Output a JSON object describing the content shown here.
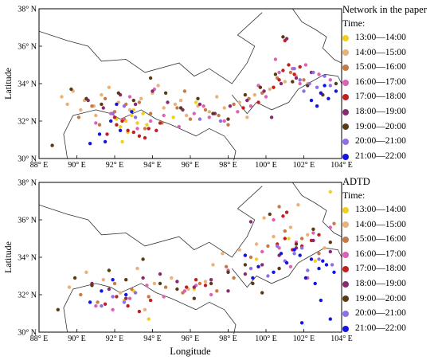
{
  "chart_data": [
    {
      "type": "scatter",
      "legend_title": "Network in the paper",
      "legend_subtitle": "Time:",
      "ylabel": "Latitude",
      "xlabel": "",
      "xlim": [
        88,
        104
      ],
      "ylim": [
        30,
        38
      ],
      "x_ticks": [
        "88° E",
        "90° E",
        "92° E",
        "94° E",
        "96° E",
        "98° E",
        "100° E",
        "102° E",
        "104° E"
      ],
      "y_ticks": [
        "30° N",
        "32° N",
        "34° N",
        "36° N",
        "38° N"
      ],
      "legend_placement": "right",
      "series": [
        {
          "name": "13:00—14:00",
          "color": "#f2cf1b",
          "x": [
            92.6,
            92.9,
            93.2,
            92.3,
            93.5,
            93.0,
            92.7,
            95.1,
            96.3,
            92.1,
            93.7,
            92.4
          ],
          "y": [
            32.0,
            32.3,
            31.9,
            31.7,
            32.4,
            32.6,
            31.4,
            32.2,
            33.0,
            32.1,
            31.8,
            30.9
          ]
        },
        {
          "name": "14:00—15:00",
          "color": "#e8b27a",
          "x": [
            89.2,
            89.8,
            90.4,
            90.9,
            91.3,
            91.7,
            92.2,
            92.8,
            93.4,
            94.0,
            94.6,
            95.2,
            95.8,
            96.4,
            97.0,
            97.8,
            98.6,
            99.4,
            100.2,
            101.0,
            101.6,
            102.2,
            91.0,
            93.1,
            94.3,
            90.2,
            97.4,
            99.0,
            89.5,
            95.5
          ],
          "y": [
            33.3,
            33.6,
            33.1,
            32.8,
            33.4,
            33.8,
            33.0,
            32.6,
            33.2,
            33.5,
            32.7,
            32.9,
            32.3,
            32.8,
            32.5,
            32.7,
            33.0,
            33.4,
            33.7,
            34.1,
            34.4,
            34.0,
            32.3,
            32.9,
            33.9,
            32.6,
            33.3,
            32.2,
            32.9,
            33.1
          ]
        },
        {
          "name": "15:00—16:00",
          "color": "#c77a45",
          "x": [
            90.1,
            90.8,
            91.5,
            92.0,
            92.6,
            93.3,
            93.9,
            94.5,
            95.3,
            96.0,
            96.8,
            97.5,
            98.3,
            99.1,
            99.8,
            100.6,
            101.3,
            102.0,
            91.2,
            93.6,
            95.7,
            98.0
          ],
          "y": [
            32.2,
            32.8,
            33.2,
            32.5,
            32.9,
            33.0,
            32.4,
            31.9,
            32.7,
            32.1,
            32.6,
            32.3,
            32.9,
            33.2,
            33.5,
            34.3,
            34.6,
            34.2,
            31.8,
            31.6,
            33.6,
            31.8
          ]
        },
        {
          "name": "16:00—17:00",
          "color": "#dd62b6",
          "x": [
            91.0,
            91.8,
            92.5,
            93.2,
            93.9,
            94.6,
            95.4,
            96.2,
            97.0,
            97.8,
            98.5,
            99.2,
            100.0,
            100.7,
            101.4,
            102.1,
            102.8,
            103.4,
            100.5,
            101.8,
            99.6,
            96.7,
            92.8,
            94.1
          ],
          "y": [
            31.9,
            32.4,
            32.1,
            31.6,
            32.0,
            32.3,
            31.7,
            32.4,
            32.2,
            32.0,
            32.5,
            32.8,
            33.3,
            34.6,
            34.8,
            35.0,
            34.5,
            34.2,
            35.3,
            34.0,
            33.9,
            32.8,
            33.3,
            33.7
          ]
        },
        {
          "name": "17:00—18:00",
          "color": "#c21f1f",
          "x": [
            91.6,
            92.1,
            92.7,
            93.3,
            93.8,
            94.4,
            92.4,
            93.0,
            93.6,
            98.8,
            99.6,
            100.4,
            100.9,
            101.2,
            101.5,
            101.0,
            100.7,
            101.8,
            92.0,
            94.2
          ],
          "y": [
            31.3,
            31.8,
            31.5,
            31.2,
            31.6,
            31.9,
            32.0,
            31.4,
            31.1,
            32.7,
            33.0,
            33.8,
            34.7,
            35.0,
            34.5,
            36.3,
            34.2,
            34.9,
            32.2,
            31.5
          ]
        },
        {
          "name": "18:00—19:00",
          "color": "#8a2a6e",
          "x": [
            90.6,
            91.4,
            92.3,
            93.1,
            94.0,
            94.8,
            95.6,
            96.5,
            97.3,
            98.1,
            99.0,
            99.9,
            100.8,
            101.6,
            102.4,
            101.1,
            100.3
          ],
          "y": [
            33.1,
            32.7,
            33.4,
            32.9,
            33.6,
            33.0,
            32.6,
            32.9,
            32.4,
            32.8,
            33.1,
            33.6,
            34.0,
            34.3,
            34.6,
            36.4,
            32.2
          ]
        },
        {
          "name": "19:00—20:00",
          "color": "#5a3a16",
          "x": [
            89.7,
            90.5,
            91.3,
            92.2,
            93.0,
            93.9,
            94.7,
            95.5,
            96.4,
            97.2,
            98.0,
            98.9,
            99.7,
            100.5,
            101.4,
            102.2,
            103.0,
            103.7,
            100.9,
            88.7
          ],
          "y": [
            33.7,
            33.2,
            32.9,
            33.5,
            33.1,
            34.3,
            33.5,
            32.7,
            33.2,
            32.4,
            32.1,
            33.4,
            33.8,
            34.5,
            34.1,
            33.9,
            33.4,
            34.0,
            36.5,
            30.7
          ]
        },
        {
          "name": "20:00—21:00",
          "color": "#8f6fe8",
          "x": [
            91.9,
            92.5,
            93.1,
            101.8,
            102.3,
            102.7,
            103.1,
            102.0,
            102.5,
            103.4,
            101.5,
            102.9,
            96.5,
            97.6
          ],
          "y": [
            32.4,
            32.8,
            32.2,
            34.2,
            34.0,
            33.8,
            34.4,
            33.6,
            34.6,
            33.9,
            34.8,
            33.5,
            32.1,
            32.0
          ]
        },
        {
          "name": "21:00—22:00",
          "color": "#1515e0",
          "x": [
            90.7,
            91.2,
            91.8,
            92.3,
            92.9,
            92.1,
            91.5,
            102.4,
            102.9,
            103.3,
            103.7,
            102.7,
            103.1
          ],
          "y": [
            30.8,
            31.3,
            32.0,
            31.5,
            32.5,
            32.9,
            30.9,
            33.1,
            33.5,
            33.2,
            33.6,
            32.8,
            33.9
          ]
        }
      ]
    },
    {
      "type": "scatter",
      "legend_title": "ADTD",
      "legend_subtitle": "Time:",
      "ylabel": "Latitude",
      "xlabel": "Longitude",
      "xlim": [
        88,
        104
      ],
      "ylim": [
        30,
        38
      ],
      "x_ticks": [
        "88° E",
        "90° E",
        "92° E",
        "94° E",
        "96° E",
        "98° E",
        "100° E",
        "102° E",
        "104° E"
      ],
      "y_ticks": [
        "30° N",
        "32° N",
        "34° N",
        "36° N",
        "38° N"
      ],
      "legend_placement": "right",
      "series": [
        {
          "name": "13:00—14:00",
          "color": "#f2cf1b",
          "x": [
            92.5,
            93.0,
            93.8,
            96.2,
            99.5,
            101.2,
            102.6,
            103.4
          ],
          "y": [
            31.7,
            32.2,
            30.7,
            32.3,
            33.9,
            35.0,
            33.8,
            37.5
          ]
        },
        {
          "name": "14:00—15:00",
          "color": "#e8b27a",
          "x": [
            89.6,
            90.5,
            91.4,
            92.3,
            93.2,
            94.1,
            95.0,
            95.9,
            96.8,
            97.7,
            98.6,
            99.5,
            100.4,
            101.3,
            102.2,
            103.1,
            93.6,
            97.2,
            99.9,
            101.7
          ],
          "y": [
            32.4,
            33.2,
            32.8,
            32.1,
            33.4,
            32.6,
            32.9,
            32.3,
            32.7,
            34.2,
            34.4,
            34.7,
            35.1,
            35.6,
            35.2,
            34.5,
            31.2,
            33.6,
            36.1,
            36.8
          ]
        },
        {
          "name": "15:00—16:00",
          "color": "#c77a45",
          "x": [
            90.2,
            91.1,
            92.0,
            92.9,
            93.8,
            94.7,
            95.6,
            96.5,
            97.4,
            98.3,
            99.2,
            100.1,
            101.0,
            101.9,
            102.8,
            103.6,
            97.9,
            100.7
          ],
          "y": [
            32.0,
            31.6,
            32.6,
            32.3,
            31.9,
            32.4,
            32.1,
            32.6,
            32.2,
            32.9,
            34.0,
            34.6,
            35.4,
            35.0,
            34.2,
            35.8,
            33.5,
            36.7
          ]
        },
        {
          "name": "16:00—17:00",
          "color": "#dd62b6",
          "x": [
            91.0,
            91.9,
            92.8,
            93.7,
            94.6,
            95.7,
            96.3,
            97.1,
            98.0,
            98.9,
            99.8,
            100.7,
            101.6,
            102.5,
            103.4,
            100.4,
            101.3,
            102.2
          ],
          "y": [
            31.4,
            31.2,
            31.8,
            32.5,
            31.9,
            32.2,
            32.5,
            32.0,
            33.3,
            34.1,
            34.3,
            34.5,
            34.8,
            35.3,
            35.6,
            36.0,
            33.5,
            32.9
          ]
        },
        {
          "name": "17:00—18:00",
          "color": "#c21f1f",
          "x": [
            91.5,
            92.1,
            92.7,
            93.3,
            93.9,
            95.8,
            96.3,
            96.8,
            100.6,
            101.0,
            101.4,
            101.1,
            100.9,
            101.9,
            102.4,
            102.8
          ],
          "y": [
            31.5,
            31.9,
            31.4,
            31.1,
            31.7,
            32.4,
            32.8,
            32.5,
            34.7,
            35.0,
            34.4,
            36.4,
            36.2,
            34.6,
            34.9,
            35.2
          ]
        },
        {
          "name": "18:00—19:00",
          "color": "#8a2a6e",
          "x": [
            90.8,
            91.7,
            92.6,
            93.5,
            94.4,
            95.3,
            96.2,
            97.1,
            98.0,
            98.9,
            99.8,
            100.7,
            101.6,
            102.5,
            103.4,
            99.2
          ],
          "y": [
            32.6,
            32.3,
            31.8,
            32.9,
            33.1,
            32.7,
            32.4,
            32.8,
            32.2,
            33.1,
            33.6,
            34.1,
            34.5,
            34.9,
            34.3,
            35.9
          ]
        },
        {
          "name": "19:00—20:00",
          "color": "#5a3a16",
          "x": [
            89.0,
            89.9,
            90.8,
            91.7,
            92.6,
            93.5,
            94.4,
            95.3,
            96.2,
            97.1,
            98.0,
            98.9,
            99.8,
            100.7,
            101.6,
            102.5,
            103.4,
            99.3,
            100.2
          ],
          "y": [
            31.2,
            32.9,
            32.5,
            33.3,
            32.8,
            33.9,
            32.6,
            32.3,
            31.8,
            32.6,
            33.2,
            33.6,
            32.1,
            33.4,
            34.7,
            35.5,
            34.8,
            32.6,
            36.3
          ]
        },
        {
          "name": "20:00—21:00",
          "color": "#8f6fe8",
          "x": [
            91.3,
            91.9,
            92.5,
            93.1,
            99.2,
            100.1,
            101.0,
            101.9,
            102.8,
            103.5,
            102.2,
            101.5,
            100.6
          ],
          "y": [
            31.4,
            31.9,
            31.6,
            32.1,
            33.4,
            33.0,
            33.8,
            34.5,
            33.9,
            33.6,
            33.3,
            34.2,
            34.6
          ]
        },
        {
          "name": "21:00—22:00",
          "color": "#1515e0",
          "x": [
            90.7,
            91.3,
            91.9,
            92.6,
            98.9,
            99.6,
            100.4,
            101.1,
            101.8,
            102.4,
            102.8,
            103.2,
            103.6,
            102.1,
            102.6,
            103.0,
            101.5,
            100.8,
            102.9,
            103.4,
            99.3,
            101.9
          ],
          "y": [
            31.6,
            32.2,
            32.8,
            32.0,
            34.1,
            33.5,
            33.2,
            33.7,
            34.1,
            33.9,
            33.4,
            33.6,
            33.2,
            32.9,
            32.6,
            33.8,
            34.4,
            34.2,
            31.7,
            30.7,
            32.9,
            30.5
          ]
        }
      ]
    }
  ]
}
